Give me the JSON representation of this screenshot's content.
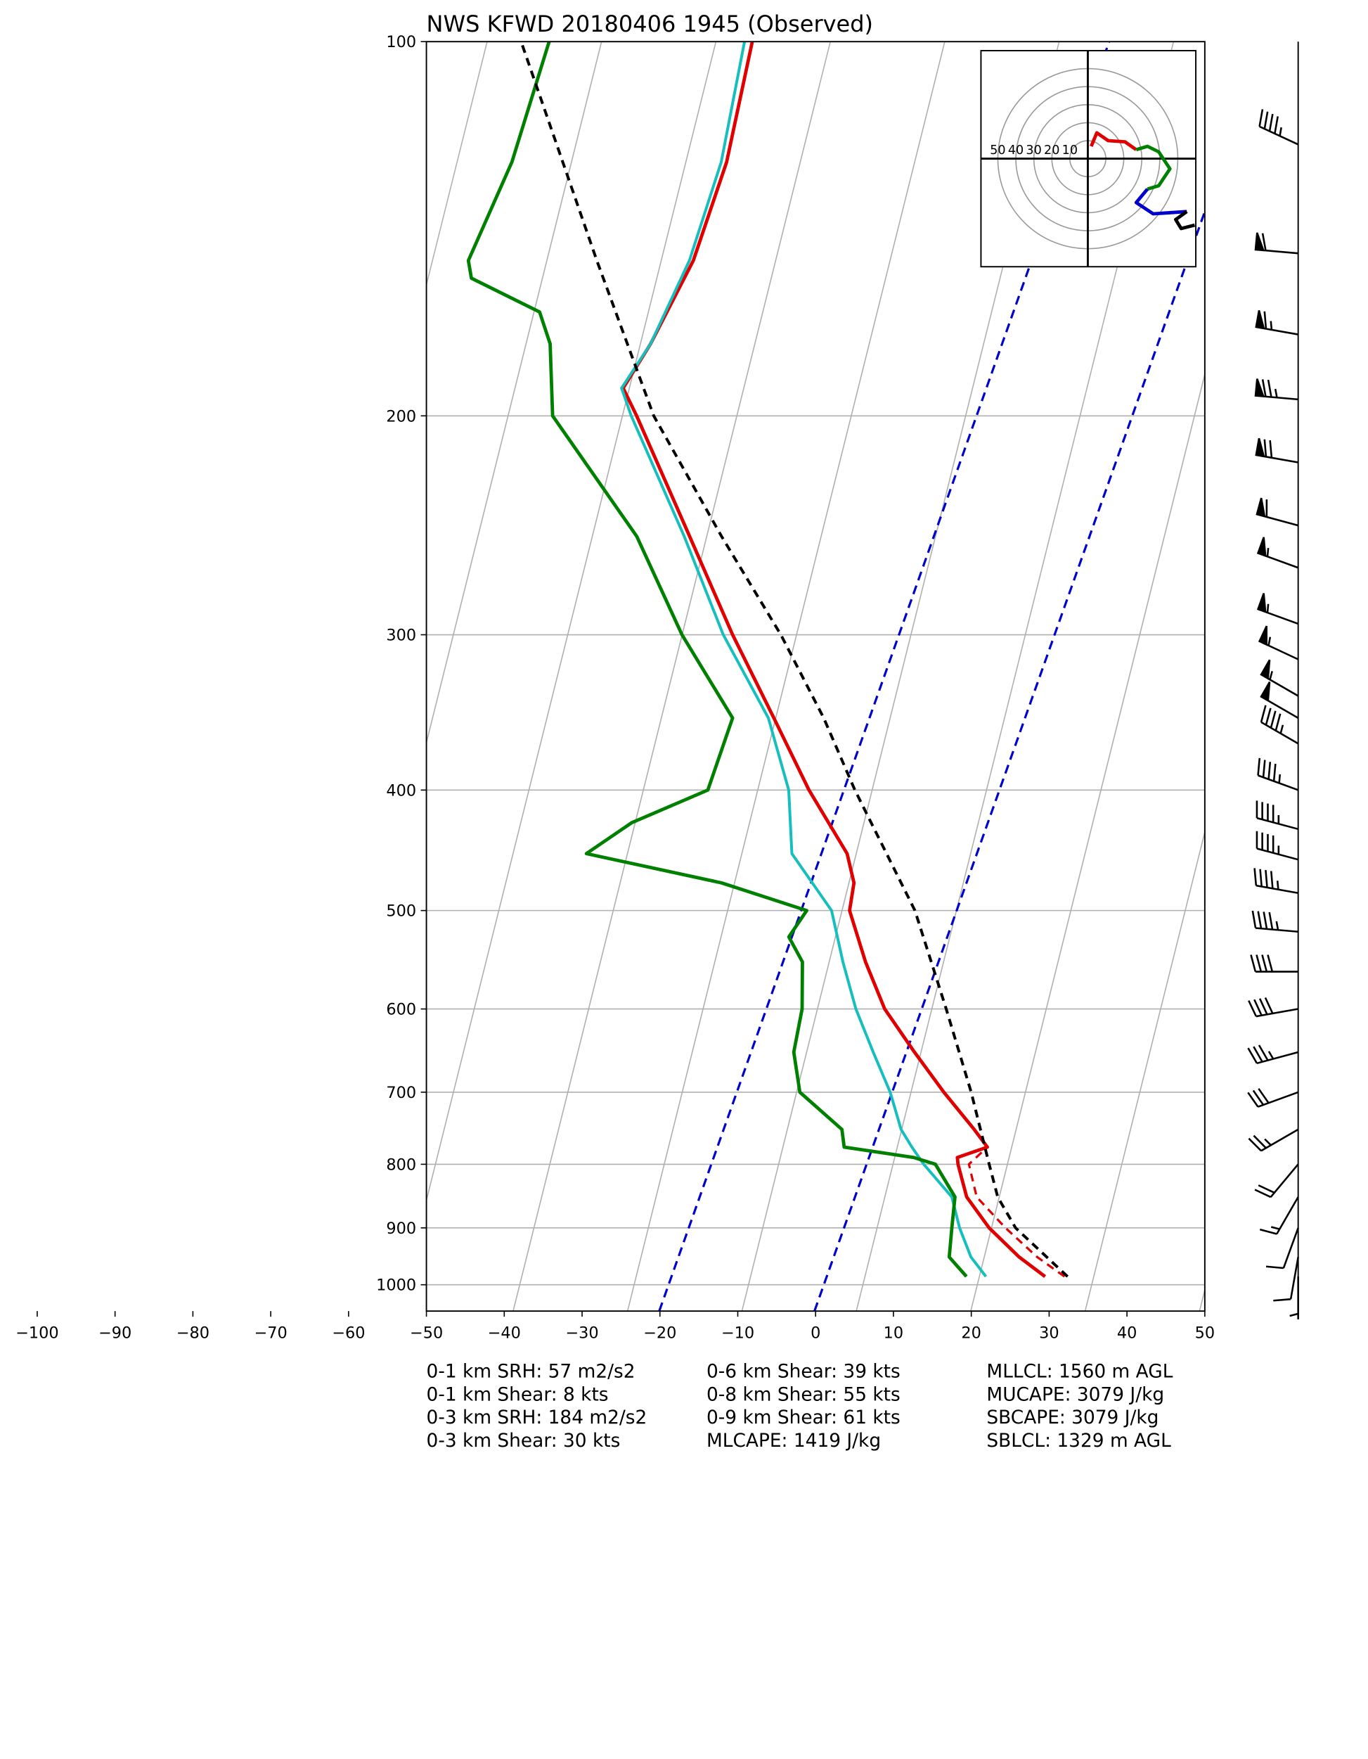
{
  "chart_data": {
    "type": "skewt",
    "title": "NWS KFWD 20180406 1945   (Observed)",
    "xlim": [
      -50,
      50
    ],
    "xticks": [
      {
        "value": -100,
        "label": "−100"
      },
      {
        "value": -90,
        "label": "−90"
      },
      {
        "value": -80,
        "label": "−80"
      },
      {
        "value": -70,
        "label": "−70"
      },
      {
        "value": -60,
        "label": "−60"
      },
      {
        "value": -50,
        "label": "−50"
      },
      {
        "value": -40,
        "label": "−40"
      },
      {
        "value": -30,
        "label": "−30"
      },
      {
        "value": -20,
        "label": "−20"
      },
      {
        "value": -10,
        "label": "−10"
      },
      0,
      10,
      20,
      30,
      40,
      50
    ],
    "ylim": [
      1050,
      100
    ],
    "log_y": true,
    "yticks": [
      100,
      200,
      300,
      400,
      500,
      600,
      700,
      800,
      900,
      1000
    ],
    "grid": true,
    "series": [
      {
        "color": "#e00000",
        "dash": "solid",
        "width": 3,
        "pressure": [
          985,
          950,
          900,
          850,
          800,
          790,
          775,
          750,
          700,
          650,
          600,
          550,
          500,
          475,
          450,
          400,
          350,
          300,
          250,
          200,
          190,
          175,
          150,
          125,
          100
        ],
        "values": [
          27.9,
          23.7,
          18.5,
          14.2,
          11.6,
          11.2,
          14.6,
          12.1,
          6.5,
          0.9,
          -4.9,
          -9.5,
          -13.9,
          -14.6,
          -16.8,
          -24.6,
          -32.4,
          -41.5,
          -51.5,
          -63.8,
          -66.8,
          -65.3,
          -63.6,
          -63.8,
          -66.0
        ]
      },
      {
        "color": "#e00000",
        "dash": "dashed",
        "width": 2,
        "pressure": [
          985,
          950,
          900,
          850,
          800,
          775
        ],
        "values": [
          30.4,
          26.0,
          20.6,
          15.5,
          13.0,
          14.6
        ]
      },
      {
        "color": "#17bebe",
        "dash": "solid",
        "width": 2.5,
        "pressure": [
          985,
          950,
          900,
          850,
          800,
          775,
          750,
          700,
          650,
          600,
          550,
          500,
          450,
          400,
          350,
          300,
          250,
          200,
          190,
          175,
          150,
          125,
          100
        ],
        "values": [
          20.3,
          17.5,
          14.7,
          12.3,
          7.2,
          4.9,
          2.7,
          -0.4,
          -4.4,
          -8.6,
          -12.4,
          -16.2,
          -23.9,
          -27.2,
          -33.1,
          -42.7,
          -52.2,
          -64.5,
          -67.0,
          -65.3,
          -64.1,
          -64.5,
          -67.0
        ]
      },
      {
        "color": "#008000",
        "dash": "solid",
        "width": 3,
        "pressure": [
          985,
          950,
          900,
          850,
          800,
          790,
          775,
          750,
          700,
          650,
          600,
          550,
          525,
          500,
          475,
          450,
          425,
          400,
          350,
          300,
          250,
          200,
          175,
          165,
          155,
          150,
          125,
          100
        ],
        "values": [
          17.8,
          14.7,
          13.7,
          12.7,
          8.7,
          5.6,
          -3.8,
          -4.9,
          -12.0,
          -14.6,
          -15.5,
          -17.6,
          -20.5,
          -19.4,
          -31.6,
          -50.3,
          -45.9,
          -37.6,
          -37.7,
          -48.0,
          -58.3,
          -74.6,
          -78.2,
          -81.0,
          -91.3,
          -92.5,
          -91.4,
          -92.1
        ]
      },
      {
        "color": "#000000",
        "dash": "dashed",
        "width": 2.5,
        "pressure": [
          985,
          900,
          850,
          800,
          700,
          600,
          500,
          400,
          350,
          300,
          250,
          200,
          150,
          100
        ],
        "values": [
          30.8,
          21.9,
          18.2,
          15.6,
          10.0,
          3.0,
          -5.5,
          -18.7,
          -26.0,
          -35.3,
          -47.4,
          -61.6,
          -76.0,
          -95.7
        ]
      }
    ],
    "barbs": {
      "pressure": [
        121,
        148,
        172,
        194,
        218,
        245,
        265,
        294,
        314,
        336,
        350,
        367,
        400,
        430,
        455,
        484,
        520,
        560,
        600,
        650,
        700,
        750,
        800,
        850,
        900,
        950,
        985
      ],
      "speed": [
        45,
        60,
        65,
        75,
        70,
        60,
        55,
        55,
        55,
        55,
        50,
        45,
        45,
        45,
        45,
        45,
        45,
        40,
        40,
        35,
        30,
        25,
        20,
        15,
        10,
        10,
        5
      ],
      "direction": [
        295,
        275,
        280,
        275,
        280,
        285,
        290,
        290,
        295,
        300,
        300,
        300,
        290,
        285,
        285,
        280,
        275,
        270,
        260,
        255,
        250,
        240,
        220,
        210,
        200,
        190,
        180
      ]
    },
    "hodograph": {
      "rings": [
        {
          "value": 10,
          "label": "10"
        },
        {
          "value": 20,
          "label": "20"
        },
        {
          "value": 30,
          "label": "30"
        },
        {
          "value": 40,
          "label": "40"
        },
        {
          "value": 50,
          "label": "50"
        }
      ],
      "segments": [
        {
          "color": "#e00000",
          "u": [
            1.9,
            5.0,
            11.3,
            20.6,
            26.9
          ],
          "v": [
            6.9,
            14.4,
            10.0,
            9.4,
            5.0
          ]
        },
        {
          "color": "#008000",
          "u": [
            26.9,
            33.1,
            39.4,
            45.6,
            39.4,
            33.1
          ],
          "v": [
            5.0,
            6.9,
            3.8,
            -5.6,
            -15.0,
            -16.9
          ]
        },
        {
          "color": "#0000cc",
          "u": [
            33.1,
            26.9,
            36.3,
            55.0
          ],
          "v": [
            -16.9,
            -24.4,
            -30.6,
            -29.4
          ]
        },
        {
          "color": "#000000",
          "u": [
            55.0,
            48.8,
            51.9,
            59.4
          ],
          "v": [
            -29.4,
            -33.8,
            -38.8,
            -36.9
          ]
        }
      ]
    },
    "stats": [
      [
        "0-1 km SRH: 57 m2/s2",
        "0-1 km Shear: 8 kts",
        "0-3 km SRH: 184 m2/s2",
        "0-3 km Shear: 30 kts"
      ],
      [
        "0-6 km Shear: 39 kts",
        "0-8 km Shear: 55 kts",
        "0-9 km Shear: 61 kts",
        "MLCAPE: 1419 J/kg"
      ],
      [
        "MLLCL: 1560 m AGL",
        "MUCAPE: 3079 J/kg",
        "SBCAPE: 3079 J/kg",
        "SBLCL: 1329 m AGL"
      ]
    ]
  }
}
